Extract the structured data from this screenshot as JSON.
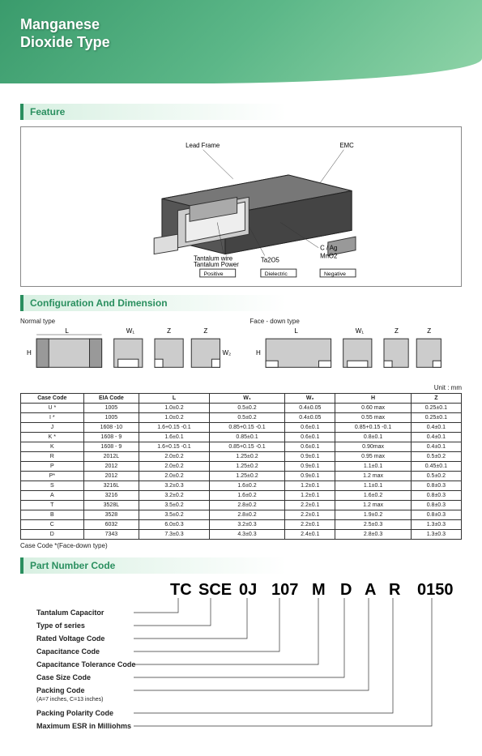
{
  "header": {
    "line1": "Manganese",
    "line2": "Dioxide Type"
  },
  "sections": {
    "feature": "Feature",
    "config": "Configuration And Dimension",
    "partcode": "Part Number Code"
  },
  "feature_labels": {
    "lead": "Lead Frame",
    "emc": "EMC",
    "cag": "C / Ag",
    "mno2": "MnO2",
    "ta2o5": "Ta2O5",
    "twire": "Tantalum wire",
    "tpowder": "Tantalum Power",
    "positive": "Positive",
    "dielectric": "Dielectric",
    "negative": "Negative"
  },
  "config_labels": {
    "normal": "Normal type",
    "face": "Face - down type",
    "unit": "Unit : mm",
    "L": "L",
    "W1": "W₁",
    "W2": "W₂",
    "Z": "Z",
    "H": "H"
  },
  "dim_table": {
    "headers": [
      "Case Code",
      "EIA Code",
      "L",
      "W₁",
      "W₂",
      "H",
      "Z"
    ],
    "rows": [
      [
        "U *",
        "1005",
        "1.0±0.2",
        "0.5±0.2",
        "0.4±0.05",
        "0.60 max",
        "0.25±0.1"
      ],
      [
        "I *",
        "1005",
        "1.0±0.2",
        "0.5±0.2",
        "0.4±0.05",
        "0.55 max",
        "0.25±0.1"
      ],
      [
        "J",
        "1608 -10",
        "1.6+0.15 -0.1",
        "0.85+0.15 -0.1",
        "0.6±0.1",
        "0.85+0.15 -0.1",
        "0.4±0.1"
      ],
      [
        "K *",
        "1608 - 9",
        "1.6±0.1",
        "0.85±0.1",
        "0.6±0.1",
        "0.8±0.1",
        "0.4±0.1"
      ],
      [
        "K",
        "1608 - 9",
        "1.6+0.15 -0.1",
        "0.85+0.15 -0.1",
        "0.6±0.1",
        "0.90max",
        "0.4±0.1"
      ],
      [
        "R",
        "2012L",
        "2.0±0.2",
        "1.25±0.2",
        "0.9±0.1",
        "0.95 max",
        "0.5±0.2"
      ],
      [
        "P",
        "2012",
        "2.0±0.2",
        "1.25±0.2",
        "0.9±0.1",
        "1.1±0.1",
        "0.45±0.1"
      ],
      [
        "P*",
        "2012",
        "2.0±0.2",
        "1.25±0.2",
        "0.9±0.1",
        "1.2 max",
        "0.5±0.2"
      ],
      [
        "S",
        "3216L",
        "3.2±0.3",
        "1.6±0.2",
        "1.2±0.1",
        "1.1±0.1",
        "0.8±0.3"
      ],
      [
        "A",
        "3216",
        "3.2±0.2",
        "1.6±0.2",
        "1.2±0.1",
        "1.6±0.2",
        "0.8±0.3"
      ],
      [
        "T",
        "3528L",
        "3.5±0.2",
        "2.8±0.2",
        "2.2±0.1",
        "1.2 max",
        "0.8±0.3"
      ],
      [
        "B",
        "3528",
        "3.5±0.2",
        "2.8±0.2",
        "2.2±0.1",
        "1.9±0.2",
        "0.8±0.3"
      ],
      [
        "C",
        "6032",
        "6.0±0.3",
        "3.2±0.3",
        "2.2±0.1",
        "2.5±0.3",
        "1.3±0.3"
      ],
      [
        "D",
        "7343",
        "7.3±0.3",
        "4.3±0.3",
        "2.4±0.1",
        "2.8±0.3",
        "1.3±0.3"
      ]
    ],
    "note": "Case Code *(Face-down type)"
  },
  "part_code": {
    "segments": [
      "TC",
      "SCE",
      "0J",
      "107",
      "M",
      "D",
      "A",
      "R",
      "0150"
    ],
    "labels": [
      {
        "text": "Tantalum Capacitor"
      },
      {
        "text": "Type of series"
      },
      {
        "text": "Rated Voltage Code"
      },
      {
        "text": "Capacitance Code"
      },
      {
        "text": "Capacitance Tolerance Code"
      },
      {
        "text": "Case Size Code"
      },
      {
        "text": "Packing Code",
        "sub": "(A=7 inches, C=13 inches)"
      },
      {
        "text": "Packing Polarity Code"
      },
      {
        "text": "Maximum ESR in Milliohms"
      }
    ]
  }
}
